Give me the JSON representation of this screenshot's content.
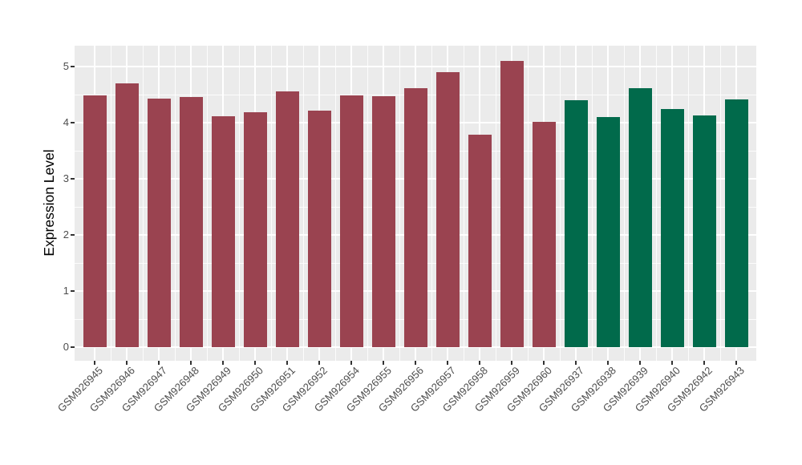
{
  "chart_data": {
    "type": "bar",
    "title": "",
    "xlabel": "",
    "ylabel": "Expression Level",
    "categories": [
      "GSM926945",
      "GSM926946",
      "GSM926947",
      "GSM926948",
      "GSM926949",
      "GSM926950",
      "GSM926951",
      "GSM926952",
      "GSM926954",
      "GSM926955",
      "GSM926956",
      "GSM926957",
      "GSM926958",
      "GSM926959",
      "GSM926960",
      "GSM926937",
      "GSM926938",
      "GSM926939",
      "GSM926940",
      "GSM926942",
      "GSM926943"
    ],
    "values": [
      4.48,
      4.7,
      4.43,
      4.46,
      4.12,
      4.18,
      4.56,
      4.22,
      4.49,
      4.47,
      4.62,
      4.9,
      3.78,
      5.1,
      4.01,
      4.4,
      4.1,
      4.61,
      4.24,
      4.13,
      4.42
    ],
    "bar_colors": [
      "#9A4350",
      "#9A4350",
      "#9A4350",
      "#9A4350",
      "#9A4350",
      "#9A4350",
      "#9A4350",
      "#9A4350",
      "#9A4350",
      "#9A4350",
      "#9A4350",
      "#9A4350",
      "#9A4350",
      "#9A4350",
      "#9A4350",
      "#016A4B",
      "#016A4B",
      "#016A4B",
      "#016A4B",
      "#016A4B",
      "#016A4B"
    ],
    "groups": [
      {
        "name": "red-group",
        "color": "#9A4350",
        "labels": [
          "GSM926945",
          "GSM926946",
          "GSM926947",
          "GSM926948",
          "GSM926949",
          "GSM926950",
          "GSM926951",
          "GSM926952",
          "GSM926954",
          "GSM926955",
          "GSM926956",
          "GSM926957",
          "GSM926958",
          "GSM926959",
          "GSM926960"
        ]
      },
      {
        "name": "green-group",
        "color": "#016A4B",
        "labels": [
          "GSM926937",
          "GSM926938",
          "GSM926939",
          "GSM926940",
          "GSM926942",
          "GSM926943"
        ]
      }
    ],
    "yticks": [
      0,
      1,
      2,
      3,
      4,
      5
    ],
    "ylim": [
      -0.26,
      5.37
    ],
    "grid": true,
    "legend": "none",
    "panel_bg": "#EBEBEB",
    "grid_color": "#FFFFFF",
    "tick_label_color": "#4D4D4D",
    "tick_mark_color": "#333333"
  }
}
